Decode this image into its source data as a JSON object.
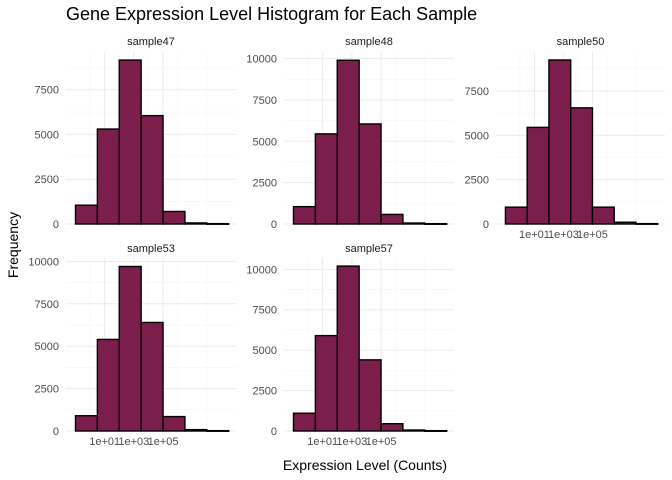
{
  "figure": {
    "title": "Gene Expression Level Histogram for Each Sample",
    "xlabel": "Expression Level (Counts)",
    "ylabel": "Frequency"
  },
  "colors": {
    "bar_fill": "#7b1e4b",
    "bar_stroke": "#000000",
    "grid_major": "#ebebeb",
    "grid_minor": "#f5f5f5",
    "tick_text": "#4d4d4d"
  },
  "chart_data": {
    "type": "bar",
    "subtype": "faceted-histogram",
    "x_scale": "log10",
    "x_tick_values": [
      10,
      1000,
      100000
    ],
    "x_tick_labels": [
      "1e+01",
      "1e+03",
      "1e+05"
    ],
    "bin_edges": [
      0.1,
      3.162,
      100,
      3162,
      100000,
      3162000,
      100000000,
      3162000000
    ],
    "grid": true,
    "legend": "none",
    "facets": [
      {
        "name": "sample47",
        "counts": [
          1050,
          5300,
          9150,
          6050,
          700,
          60,
          20
        ],
        "ylim": [
          0,
          9600
        ],
        "y_ticks": [
          0,
          2500,
          5000,
          7500
        ],
        "y_tick_labels": [
          "0",
          "2500",
          "5000",
          "7500"
        ]
      },
      {
        "name": "sample48",
        "counts": [
          1050,
          5450,
          9900,
          6050,
          580,
          60,
          20
        ],
        "ylim": [
          0,
          10400
        ],
        "y_ticks": [
          0,
          2500,
          5000,
          7500,
          10000
        ],
        "y_tick_labels": [
          "0",
          "2500",
          "5000",
          "7500",
          "10000"
        ]
      },
      {
        "name": "sample50",
        "counts": [
          950,
          5450,
          9250,
          6550,
          950,
          100,
          20
        ],
        "ylim": [
          0,
          9700
        ],
        "y_ticks": [
          0,
          2500,
          5000,
          7500
        ],
        "y_tick_labels": [
          "0",
          "2500",
          "5000",
          "7500"
        ]
      },
      {
        "name": "sample53",
        "counts": [
          900,
          5400,
          9700,
          6400,
          850,
          80,
          20
        ],
        "ylim": [
          0,
          10200
        ],
        "y_ticks": [
          0,
          2500,
          5000,
          7500,
          10000
        ],
        "y_tick_labels": [
          "0",
          "2500",
          "5000",
          "7500",
          "10000"
        ]
      },
      {
        "name": "sample57",
        "counts": [
          1100,
          5900,
          10200,
          4400,
          450,
          60,
          20
        ],
        "ylim": [
          0,
          10700
        ],
        "y_ticks": [
          0,
          2500,
          5000,
          7500,
          10000
        ],
        "y_tick_labels": [
          "0",
          "2500",
          "5000",
          "7500",
          "10000"
        ]
      }
    ]
  }
}
